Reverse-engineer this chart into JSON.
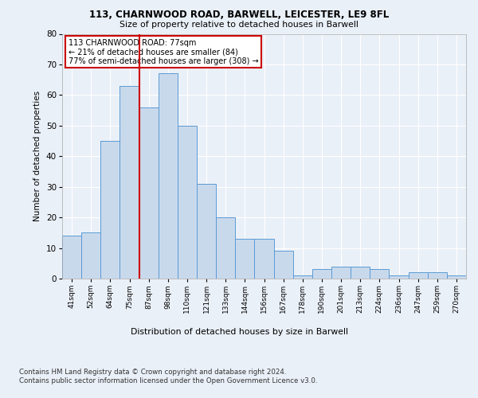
{
  "title1": "113, CHARNWOOD ROAD, BARWELL, LEICESTER, LE9 8FL",
  "title2": "Size of property relative to detached houses in Barwell",
  "xlabel": "Distribution of detached houses by size in Barwell",
  "ylabel": "Number of detached properties",
  "bins": [
    "41sqm",
    "52sqm",
    "64sqm",
    "75sqm",
    "87sqm",
    "98sqm",
    "110sqm",
    "121sqm",
    "133sqm",
    "144sqm",
    "156sqm",
    "167sqm",
    "178sqm",
    "190sqm",
    "201sqm",
    "213sqm",
    "224sqm",
    "236sqm",
    "247sqm",
    "259sqm",
    "270sqm"
  ],
  "values": [
    14,
    15,
    45,
    63,
    56,
    67,
    50,
    31,
    20,
    13,
    13,
    9,
    1,
    3,
    4,
    4,
    3,
    1,
    2,
    2,
    1
  ],
  "bar_color": "#c9d9ec",
  "bar_edge_color": "#5b9bd5",
  "vline_x": 3.5,
  "vline_color": "#cc0000",
  "annotation_text": "113 CHARNWOOD ROAD: 77sqm\n← 21% of detached houses are smaller (84)\n77% of semi-detached houses are larger (308) →",
  "annotation_box_color": "#ffffff",
  "annotation_box_edge": "#cc0000",
  "ylim": [
    0,
    80
  ],
  "yticks": [
    0,
    10,
    20,
    30,
    40,
    50,
    60,
    70,
    80
  ],
  "footer1": "Contains HM Land Registry data © Crown copyright and database right 2024.",
  "footer2": "Contains public sector information licensed under the Open Government Licence v3.0.",
  "background_color": "#eaf0f8",
  "plot_background": "#eaf0f8"
}
